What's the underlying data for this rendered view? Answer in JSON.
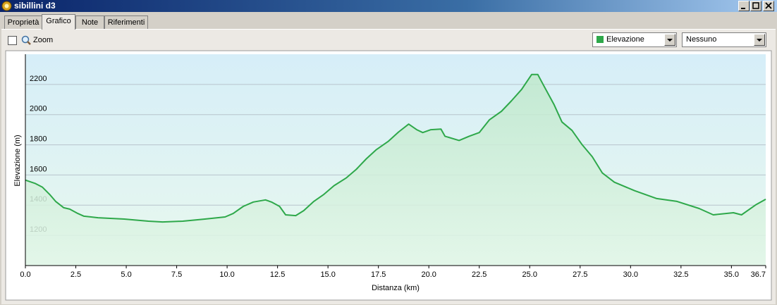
{
  "window": {
    "title": "sibillini d3",
    "tabs": [
      "Proprietà",
      "Grafico",
      "Note",
      "Riferimenti"
    ],
    "toolbar": {
      "zoom": "Zoom",
      "series_select": "Elevazione",
      "second_select": "Nessuno"
    }
  },
  "chart_data": {
    "type": "area",
    "x_label": "Distanza  (km)",
    "y_label": "Elevazione (m)",
    "x": [
      0,
      0.5,
      0.84,
      1.2,
      1.5,
      1.9,
      2.2,
      2.6,
      2.9,
      3.6,
      4.9,
      6.1,
      6.8,
      7.8,
      8.9,
      9.9,
      10.3,
      10.8,
      11.3,
      11.9,
      12.2,
      12.6,
      12.9,
      13.4,
      13.8,
      14.3,
      14.8,
      15.3,
      15.9,
      16.4,
      16.9,
      17.4,
      18.0,
      18.5,
      19.0,
      19.4,
      19.7,
      20.1,
      20.6,
      20.8,
      21.5,
      22.0,
      22.5,
      23.0,
      23.6,
      24.1,
      24.6,
      25.1,
      25.4,
      25.7,
      26.2,
      26.6,
      27.1,
      27.6,
      28.1,
      28.6,
      29.2,
      30.2,
      31.3,
      32.3,
      33.4,
      34.1,
      35.1,
      35.5,
      36.2,
      36.7
    ],
    "series": [
      {
        "name": "Elevazione",
        "color": "#2ea84a",
        "values": [
          1566,
          1543,
          1520,
          1472,
          1425,
          1383,
          1374,
          1345,
          1327,
          1317,
          1308,
          1294,
          1289,
          1294,
          1308,
          1322,
          1345,
          1392,
          1421,
          1435,
          1421,
          1392,
          1336,
          1331,
          1364,
          1425,
          1472,
          1529,
          1580,
          1637,
          1707,
          1768,
          1824,
          1885,
          1937,
          1900,
          1881,
          1900,
          1904,
          1857,
          1829,
          1857,
          1881,
          1965,
          2022,
          2092,
          2167,
          2266,
          2266,
          2191,
          2068,
          1951,
          1895,
          1801,
          1721,
          1613,
          1552,
          1496,
          1444,
          1425,
          1378,
          1336,
          1350,
          1336,
          1402,
          1439
        ]
      }
    ],
    "xlim": [
      0,
      36.7
    ],
    "ylim": [
      1000,
      2400
    ],
    "xticks": [
      {
        "value": 0,
        "label": "0.0"
      },
      2.5,
      {
        "value": 5,
        "label": "5.0"
      },
      7.5,
      {
        "value": 10,
        "label": "10.0"
      },
      12.5,
      {
        "value": 15,
        "label": "15.0"
      },
      17.5,
      {
        "value": 20,
        "label": "20.0"
      },
      22.5,
      {
        "value": 25,
        "label": "25.0"
      },
      27.5,
      {
        "value": 30,
        "label": "30.0"
      },
      32.5,
      {
        "value": 35,
        "label": "35.0"
      },
      36.7
    ],
    "yticks": [
      1200,
      1400,
      1600,
      1800,
      2000,
      2200
    ],
    "grid": true
  }
}
